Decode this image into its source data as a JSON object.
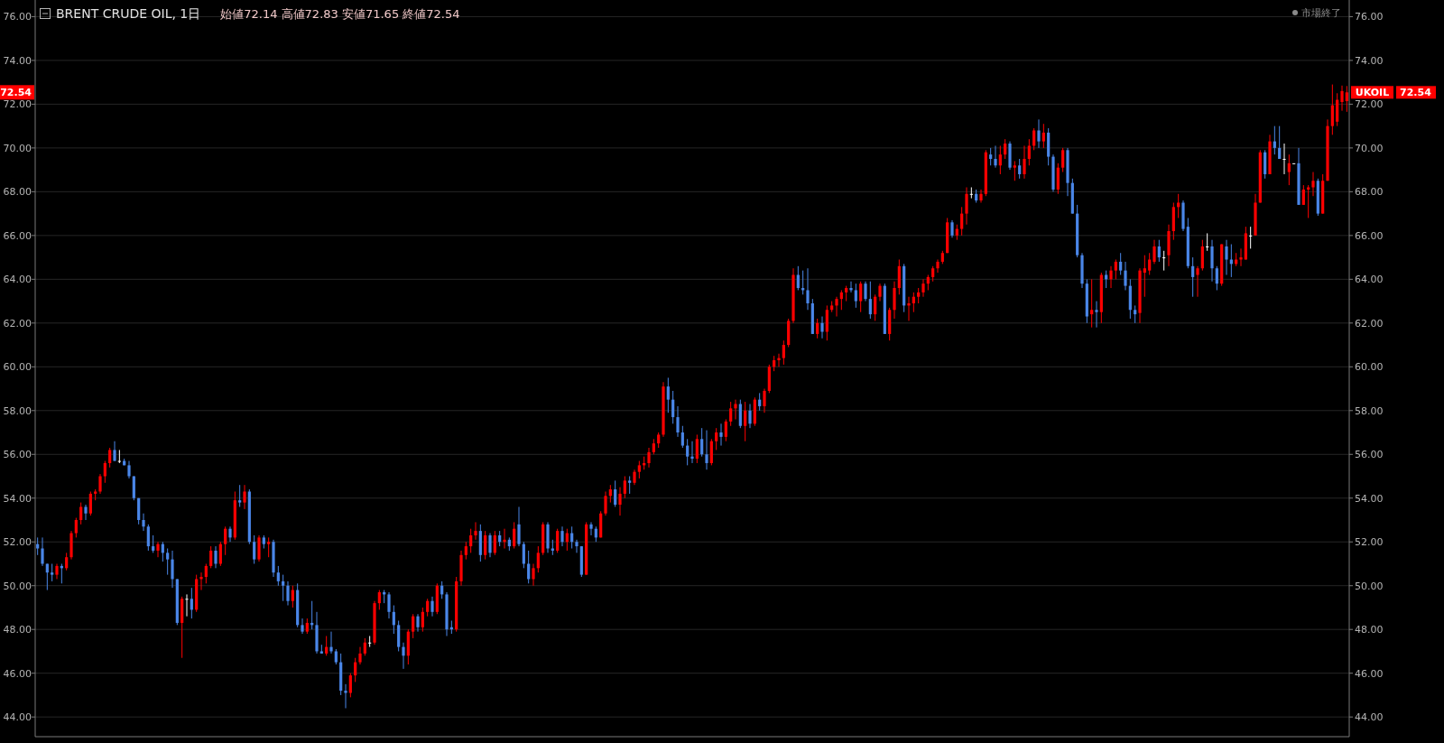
{
  "chart_data": {
    "type": "candlestick",
    "title": "BRENT CRUDE OIL, 1日",
    "annotations": [
      "始値72.14 高値72.83 安値71.65 終値72.54",
      "市場終了",
      "UKOIL",
      "72.54",
      "72.54"
    ],
    "categories": [
      null,
      null,
      null,
      null,
      null,
      null,
      null,
      null,
      null,
      null,
      null,
      null,
      null,
      null,
      null,
      null,
      null,
      null,
      null,
      null,
      null,
      null,
      null,
      null,
      null,
      null,
      null,
      null,
      null,
      null,
      null,
      null,
      null,
      null,
      null,
      null,
      null,
      null,
      null,
      null,
      null,
      null,
      null,
      null,
      null,
      null,
      null,
      null,
      null,
      null,
      null,
      null,
      null,
      null,
      null,
      null,
      null,
      null,
      null,
      null,
      null,
      null,
      null,
      null,
      null,
      null,
      null,
      null,
      null,
      null,
      null,
      null,
      null,
      null,
      null,
      null,
      null,
      null,
      null,
      null,
      null,
      null,
      null,
      null,
      null,
      null,
      null,
      null,
      null,
      null,
      null,
      null,
      null,
      null,
      null,
      null,
      null,
      null,
      null,
      null,
      null,
      null,
      null,
      null,
      null,
      null,
      null,
      null,
      null,
      null,
      null,
      null,
      null,
      null,
      null,
      null,
      null,
      null,
      null,
      null,
      null,
      null,
      null,
      null,
      null,
      null,
      null,
      null,
      null,
      null,
      null,
      null,
      null,
      null,
      null,
      null,
      null,
      null,
      null,
      null,
      null,
      null,
      null,
      null,
      null,
      null,
      null,
      null,
      null,
      null,
      null,
      null,
      null,
      null,
      null,
      null,
      null,
      null,
      null,
      null,
      null,
      null,
      null,
      null,
      null,
      null,
      null,
      null,
      null,
      null,
      null,
      null,
      null,
      null,
      null,
      null,
      null,
      null,
      null,
      null,
      null,
      null,
      null,
      null,
      null,
      null,
      null,
      null,
      null,
      null,
      null,
      null,
      null,
      null,
      null,
      null,
      null,
      null,
      null,
      null,
      null,
      null,
      null,
      null,
      null,
      null,
      null,
      null,
      null,
      null,
      null,
      null,
      null,
      null,
      null,
      null,
      null,
      null,
      null,
      null,
      null,
      null,
      null,
      null,
      null,
      null,
      null,
      null,
      null,
      null,
      null,
      null,
      null,
      null,
      null,
      null,
      null,
      null,
      null,
      null,
      null,
      null,
      null,
      null,
      null,
      null,
      null,
      null,
      null,
      null,
      null,
      null,
      null,
      null,
      null,
      null,
      null,
      null,
      null,
      null,
      null,
      null,
      null,
      null,
      null,
      null,
      null,
      null,
      null,
      null,
      null,
      null,
      null
    ],
    "ohlc": [
      [
        51.9,
        52.2,
        51.4,
        51.7
      ],
      [
        51.7,
        52.2,
        50.9,
        51.0
      ],
      [
        51.0,
        51.0,
        49.8,
        50.6
      ],
      [
        50.6,
        51.0,
        50.2,
        50.5
      ],
      [
        50.5,
        51.0,
        50.3,
        50.9
      ],
      [
        50.9,
        51.0,
        50.1,
        50.8
      ],
      [
        50.8,
        51.5,
        50.7,
        51.3
      ],
      [
        51.3,
        52.5,
        51.2,
        52.4
      ],
      [
        52.4,
        53.1,
        52.2,
        53.0
      ],
      [
        53.0,
        53.8,
        52.8,
        53.6
      ],
      [
        53.6,
        53.7,
        53.0,
        53.3
      ],
      [
        53.3,
        54.3,
        53.2,
        54.2
      ],
      [
        54.2,
        54.4,
        53.9,
        54.3
      ],
      [
        54.3,
        55.1,
        54.2,
        55.0
      ],
      [
        55.0,
        55.7,
        54.7,
        55.6
      ],
      [
        55.6,
        56.3,
        55.4,
        56.2
      ],
      [
        56.2,
        56.6,
        55.7,
        55.7
      ],
      [
        55.7,
        56.2,
        55.6,
        55.7
      ],
      [
        55.7,
        55.8,
        55.5,
        55.5
      ],
      [
        55.5,
        55.7,
        54.9,
        55.0
      ],
      [
        55.0,
        55.0,
        53.9,
        54.0
      ],
      [
        54.0,
        54.0,
        52.8,
        53.0
      ],
      [
        53.0,
        53.3,
        52.5,
        52.7
      ],
      [
        52.7,
        52.8,
        51.6,
        51.8
      ],
      [
        51.8,
        52.3,
        51.5,
        51.6
      ],
      [
        51.6,
        52.0,
        51.3,
        51.9
      ],
      [
        51.9,
        52.0,
        51.1,
        51.5
      ],
      [
        51.5,
        51.7,
        50.5,
        51.2
      ],
      [
        51.2,
        51.6,
        49.9,
        50.3
      ],
      [
        50.3,
        50.3,
        48.2,
        48.3
      ],
      [
        48.3,
        49.5,
        46.7,
        49.4
      ],
      [
        49.4,
        49.6,
        48.6,
        49.4
      ],
      [
        49.4,
        49.9,
        48.5,
        48.9
      ],
      [
        48.9,
        50.5,
        48.8,
        50.3
      ],
      [
        50.3,
        50.6,
        49.8,
        50.4
      ],
      [
        50.4,
        51.0,
        50.1,
        50.9
      ],
      [
        50.9,
        51.8,
        50.8,
        51.6
      ],
      [
        51.6,
        51.8,
        50.8,
        51.0
      ],
      [
        51.0,
        52.0,
        50.9,
        51.9
      ],
      [
        51.9,
        52.7,
        51.4,
        52.6
      ],
      [
        52.6,
        52.7,
        52.0,
        52.2
      ],
      [
        52.2,
        54.3,
        52.1,
        53.9
      ],
      [
        53.9,
        54.6,
        53.6,
        53.8
      ],
      [
        53.8,
        54.6,
        53.5,
        54.3
      ],
      [
        54.3,
        54.4,
        51.9,
        52.0
      ],
      [
        52.0,
        52.3,
        51.0,
        51.2
      ],
      [
        51.2,
        52.3,
        51.1,
        52.2
      ],
      [
        52.2,
        52.3,
        51.7,
        51.9
      ],
      [
        51.9,
        52.2,
        51.3,
        52.0
      ],
      [
        52.0,
        52.1,
        50.4,
        50.6
      ],
      [
        50.6,
        50.9,
        50.0,
        50.2
      ],
      [
        50.2,
        50.5,
        49.3,
        50.0
      ],
      [
        50.0,
        50.2,
        49.1,
        49.3
      ],
      [
        49.3,
        50.0,
        49.0,
        49.8
      ],
      [
        49.8,
        50.1,
        48.1,
        48.2
      ],
      [
        48.2,
        48.5,
        47.8,
        47.9
      ],
      [
        47.9,
        48.5,
        47.8,
        48.3
      ],
      [
        48.3,
        49.3,
        48.0,
        48.2
      ],
      [
        48.2,
        48.8,
        46.9,
        47.0
      ],
      [
        47.0,
        47.3,
        46.9,
        46.9
      ],
      [
        46.9,
        47.7,
        46.8,
        47.2
      ],
      [
        47.2,
        47.9,
        46.9,
        47.0
      ],
      [
        47.0,
        47.1,
        46.4,
        46.5
      ],
      [
        46.5,
        46.9,
        45.0,
        45.2
      ],
      [
        45.2,
        45.5,
        44.4,
        45.1
      ],
      [
        45.1,
        46.0,
        44.9,
        45.9
      ],
      [
        45.9,
        46.7,
        45.6,
        46.5
      ],
      [
        46.5,
        47.2,
        46.4,
        46.9
      ],
      [
        46.9,
        47.6,
        46.8,
        47.4
      ],
      [
        47.4,
        47.7,
        47.2,
        47.4
      ],
      [
        47.4,
        49.3,
        47.3,
        49.2
      ],
      [
        49.2,
        49.8,
        48.9,
        49.7
      ],
      [
        49.7,
        49.8,
        49.2,
        49.6
      ],
      [
        49.6,
        49.7,
        48.5,
        48.8
      ],
      [
        48.8,
        49.1,
        47.8,
        48.2
      ],
      [
        48.2,
        48.4,
        47.0,
        47.2
      ],
      [
        47.2,
        47.4,
        46.2,
        46.8
      ],
      [
        46.8,
        48.0,
        46.4,
        47.9
      ],
      [
        47.9,
        48.7,
        47.6,
        48.6
      ],
      [
        48.6,
        48.7,
        47.9,
        48.1
      ],
      [
        48.1,
        49.0,
        47.9,
        48.8
      ],
      [
        48.8,
        49.4,
        48.6,
        49.3
      ],
      [
        49.3,
        49.5,
        48.6,
        48.8
      ],
      [
        48.8,
        50.1,
        48.7,
        50.0
      ],
      [
        50.0,
        50.2,
        49.4,
        49.6
      ],
      [
        49.6,
        49.7,
        47.7,
        48.0
      ],
      [
        48.1,
        48.4,
        47.8,
        48.0
      ],
      [
        48.0,
        50.4,
        47.9,
        50.2
      ],
      [
        50.2,
        51.6,
        50.0,
        51.4
      ],
      [
        51.4,
        52.0,
        51.2,
        51.8
      ],
      [
        51.8,
        52.6,
        51.5,
        52.3
      ],
      [
        52.3,
        52.9,
        52.1,
        52.5
      ],
      [
        52.5,
        52.8,
        51.1,
        51.4
      ],
      [
        51.4,
        52.5,
        51.2,
        52.3
      ],
      [
        52.3,
        52.4,
        51.3,
        51.5
      ],
      [
        51.5,
        52.5,
        51.4,
        52.3
      ],
      [
        52.3,
        52.5,
        51.8,
        52.0
      ],
      [
        52.0,
        52.6,
        51.7,
        52.1
      ],
      [
        52.1,
        52.2,
        51.6,
        51.8
      ],
      [
        51.8,
        52.9,
        51.7,
        52.6
      ],
      [
        52.8,
        53.6,
        51.8,
        51.9
      ],
      [
        51.9,
        52.0,
        50.8,
        51.0
      ],
      [
        51.0,
        51.6,
        50.1,
        50.3
      ],
      [
        50.3,
        51.0,
        50.0,
        50.8
      ],
      [
        50.8,
        51.8,
        50.6,
        51.5
      ],
      [
        51.5,
        52.9,
        51.4,
        52.8
      ],
      [
        52.8,
        52.9,
        51.5,
        51.7
      ],
      [
        51.7,
        52.1,
        51.4,
        51.6
      ],
      [
        51.6,
        52.6,
        51.5,
        52.5
      ],
      [
        52.5,
        52.7,
        51.8,
        52.0
      ],
      [
        52.0,
        52.6,
        51.6,
        52.4
      ],
      [
        52.4,
        52.7,
        51.7,
        52.0
      ],
      [
        52.0,
        52.1,
        51.5,
        51.8
      ],
      [
        51.8,
        51.8,
        50.4,
        50.5
      ],
      [
        50.5,
        52.9,
        50.5,
        52.8
      ],
      [
        52.8,
        52.9,
        52.3,
        52.6
      ],
      [
        52.6,
        52.7,
        52.0,
        52.2
      ],
      [
        52.2,
        53.4,
        52.2,
        53.3
      ],
      [
        53.3,
        54.3,
        53.2,
        54.1
      ],
      [
        54.1,
        54.6,
        53.8,
        54.4
      ],
      [
        54.4,
        54.8,
        53.6,
        53.7
      ],
      [
        53.7,
        54.5,
        53.2,
        54.2
      ],
      [
        54.2,
        55.0,
        54.0,
        54.8
      ],
      [
        54.8,
        55.0,
        54.2,
        54.7
      ],
      [
        54.7,
        55.3,
        54.6,
        55.2
      ],
      [
        55.2,
        55.7,
        54.9,
        55.5
      ],
      [
        55.5,
        55.9,
        55.3,
        55.6
      ],
      [
        55.6,
        56.3,
        55.4,
        56.1
      ],
      [
        56.1,
        56.7,
        56.0,
        56.5
      ],
      [
        56.5,
        57.0,
        56.3,
        56.9
      ],
      [
        56.9,
        59.3,
        56.8,
        59.1
      ],
      [
        59.1,
        59.5,
        57.9,
        58.5
      ],
      [
        58.5,
        58.9,
        57.4,
        57.7
      ],
      [
        57.7,
        58.2,
        56.8,
        57.0
      ],
      [
        57.0,
        57.3,
        56.3,
        56.4
      ],
      [
        56.4,
        56.7,
        55.5,
        55.9
      ],
      [
        55.9,
        56.6,
        55.6,
        55.8
      ],
      [
        55.8,
        56.9,
        55.6,
        56.7
      ],
      [
        56.7,
        57.2,
        55.9,
        56.0
      ],
      [
        56.0,
        57.1,
        55.3,
        55.6
      ],
      [
        55.6,
        56.7,
        55.5,
        56.6
      ],
      [
        56.6,
        57.2,
        56.2,
        57.0
      ],
      [
        57.0,
        57.4,
        56.4,
        56.8
      ],
      [
        56.8,
        57.6,
        56.6,
        57.5
      ],
      [
        57.5,
        58.4,
        57.3,
        58.1
      ],
      [
        58.1,
        58.5,
        57.6,
        58.3
      ],
      [
        58.3,
        58.5,
        57.2,
        57.3
      ],
      [
        57.3,
        58.4,
        56.6,
        58.0
      ],
      [
        58.0,
        58.3,
        57.2,
        57.4
      ],
      [
        57.4,
        58.6,
        57.3,
        58.5
      ],
      [
        58.5,
        58.8,
        58.0,
        58.2
      ],
      [
        58.2,
        59.0,
        57.9,
        58.9
      ],
      [
        58.9,
        60.1,
        58.8,
        60.0
      ],
      [
        60.0,
        60.5,
        59.8,
        60.3
      ],
      [
        60.3,
        60.6,
        60.0,
        60.4
      ],
      [
        60.4,
        61.2,
        60.1,
        61.0
      ],
      [
        61.0,
        62.2,
        60.9,
        62.1
      ],
      [
        62.1,
        64.5,
        62.0,
        64.2
      ],
      [
        64.2,
        64.6,
        63.5,
        63.6
      ],
      [
        63.6,
        64.4,
        63.3,
        63.5
      ],
      [
        63.5,
        64.5,
        62.6,
        62.9
      ],
      [
        62.9,
        63.1,
        61.5,
        61.5
      ],
      [
        61.5,
        62.2,
        61.3,
        62.0
      ],
      [
        62.0,
        62.3,
        61.3,
        61.6
      ],
      [
        61.6,
        62.8,
        61.2,
        62.6
      ],
      [
        62.6,
        63.0,
        62.5,
        62.8
      ],
      [
        62.8,
        63.2,
        62.3,
        63.1
      ],
      [
        63.1,
        63.5,
        62.6,
        63.4
      ],
      [
        63.4,
        63.7,
        63.0,
        63.6
      ],
      [
        63.6,
        63.9,
        63.4,
        63.5
      ],
      [
        63.5,
        63.8,
        62.7,
        63.0
      ],
      [
        63.0,
        63.9,
        62.5,
        63.8
      ],
      [
        63.8,
        63.9,
        63.0,
        63.1
      ],
      [
        63.1,
        63.9,
        62.2,
        62.4
      ],
      [
        62.4,
        63.3,
        62.1,
        63.2
      ],
      [
        63.2,
        63.8,
        63.0,
        63.7
      ],
      [
        63.7,
        63.8,
        61.5,
        61.5
      ],
      [
        61.5,
        62.7,
        61.2,
        62.6
      ],
      [
        62.6,
        63.9,
        62.2,
        63.6
      ],
      [
        63.6,
        64.9,
        63.3,
        64.6
      ],
      [
        64.6,
        64.7,
        62.5,
        62.8
      ],
      [
        62.8,
        63.2,
        62.1,
        62.9
      ],
      [
        62.9,
        63.4,
        62.5,
        63.2
      ],
      [
        63.2,
        63.6,
        62.9,
        63.4
      ],
      [
        63.4,
        64.0,
        63.2,
        63.8
      ],
      [
        63.8,
        64.2,
        63.5,
        64.1
      ],
      [
        64.1,
        64.6,
        63.9,
        64.5
      ],
      [
        64.5,
        64.9,
        64.3,
        64.8
      ],
      [
        64.8,
        65.3,
        64.7,
        65.2
      ],
      [
        65.2,
        66.8,
        65.2,
        66.6
      ],
      [
        66.6,
        66.7,
        65.9,
        66.0
      ],
      [
        66.0,
        66.5,
        65.8,
        66.3
      ],
      [
        66.3,
        67.3,
        66.0,
        67.0
      ],
      [
        67.0,
        68.2,
        66.5,
        67.9
      ],
      [
        67.9,
        68.2,
        67.7,
        67.9
      ],
      [
        67.9,
        68.1,
        67.5,
        67.6
      ],
      [
        67.6,
        68.1,
        67.5,
        67.9
      ],
      [
        67.9,
        69.9,
        67.8,
        69.8
      ],
      [
        69.7,
        70.0,
        69.2,
        69.5
      ],
      [
        69.5,
        70.1,
        69.1,
        69.2
      ],
      [
        69.2,
        70.1,
        68.8,
        69.7
      ],
      [
        69.7,
        70.4,
        69.5,
        70.2
      ],
      [
        70.2,
        70.3,
        69.0,
        69.1
      ],
      [
        69.1,
        69.4,
        68.5,
        69.2
      ],
      [
        69.2,
        69.5,
        68.6,
        68.8
      ],
      [
        68.8,
        70.1,
        68.6,
        69.5
      ],
      [
        69.5,
        70.4,
        69.2,
        70.1
      ],
      [
        70.1,
        70.9,
        69.9,
        70.8
      ],
      [
        70.8,
        71.3,
        70.0,
        70.3
      ],
      [
        70.3,
        71.1,
        70.0,
        70.7
      ],
      [
        70.7,
        70.9,
        69.2,
        69.6
      ],
      [
        69.6,
        69.7,
        68.0,
        68.1
      ],
      [
        68.1,
        69.3,
        67.9,
        69.1
      ],
      [
        69.1,
        70.0,
        68.9,
        69.9
      ],
      [
        69.9,
        70.0,
        67.8,
        68.4
      ],
      [
        68.4,
        68.6,
        67.0,
        67.0
      ],
      [
        67.0,
        67.4,
        65.0,
        65.1
      ],
      [
        65.1,
        65.2,
        63.6,
        63.8
      ],
      [
        63.8,
        64.0,
        62.0,
        62.3
      ],
      [
        62.4,
        64.0,
        61.8,
        62.6
      ],
      [
        62.6,
        63.0,
        61.8,
        62.5
      ],
      [
        62.5,
        64.3,
        62.0,
        64.2
      ],
      [
        64.2,
        64.4,
        63.6,
        64.0
      ],
      [
        64.0,
        64.6,
        63.6,
        64.4
      ],
      [
        64.4,
        64.9,
        64.0,
        64.8
      ],
      [
        64.8,
        65.2,
        64.2,
        64.4
      ],
      [
        64.4,
        64.8,
        63.5,
        63.7
      ],
      [
        63.7,
        64.0,
        62.2,
        62.6
      ],
      [
        62.6,
        62.8,
        62.0,
        62.4
      ],
      [
        62.46,
        64.5,
        62.0,
        64.4
      ],
      [
        64.3,
        65.1,
        63.2,
        64.5
      ],
      [
        64.4,
        65.2,
        64.2,
        64.9
      ],
      [
        64.8,
        65.8,
        64.7,
        65.5
      ],
      [
        65.5,
        65.8,
        64.8,
        65.0
      ],
      [
        65.0,
        65.3,
        64.4,
        65.0
      ],
      [
        65.1,
        66.5,
        64.6,
        66.2
      ],
      [
        66.2,
        67.5,
        65.8,
        67.3
      ],
      [
        67.3,
        67.9,
        66.8,
        67.5
      ],
      [
        67.5,
        67.6,
        66.2,
        66.3
      ],
      [
        66.4,
        66.8,
        64.5,
        64.6
      ],
      [
        64.6,
        65.0,
        63.2,
        64.1
      ],
      [
        64.2,
        64.6,
        63.2,
        64.5
      ],
      [
        64.5,
        65.8,
        64.4,
        65.5
      ],
      [
        65.5,
        66.1,
        65.3,
        65.5
      ],
      [
        65.5,
        65.8,
        63.9,
        64.5
      ],
      [
        64.5,
        64.6,
        63.5,
        63.8
      ],
      [
        63.8,
        65.6,
        63.7,
        65.6
      ],
      [
        65.5,
        65.8,
        64.2,
        64.9
      ],
      [
        64.9,
        65.6,
        64.1,
        64.7
      ],
      [
        64.7,
        65.2,
        64.6,
        64.9
      ],
      [
        64.9,
        65.4,
        64.6,
        65.0
      ],
      [
        64.9,
        66.4,
        64.9,
        66.1
      ],
      [
        66.0,
        66.4,
        65.4,
        66.0
      ],
      [
        66.0,
        67.9,
        66.0,
        67.5
      ],
      [
        67.5,
        69.9,
        67.5,
        69.8
      ],
      [
        69.8,
        69.9,
        68.6,
        68.8
      ],
      [
        68.8,
        70.6,
        68.8,
        70.3
      ],
      [
        70.3,
        71.0,
        69.7,
        70.0
      ],
      [
        70.0,
        71.0,
        69.5,
        69.5
      ],
      [
        69.5,
        70.2,
        68.8,
        69.5
      ],
      [
        68.9,
        69.7,
        68.3,
        69.3
      ],
      [
        69.3,
        69.3,
        69.3,
        69.3
      ],
      [
        69.3,
        70.0,
        67.4,
        67.4
      ],
      [
        67.4,
        68.3,
        67.4,
        68.1
      ],
      [
        68.1,
        68.3,
        66.8,
        68.2
      ],
      [
        68.2,
        68.9,
        67.8,
        68.5
      ],
      [
        68.5,
        68.6,
        66.9,
        67.0
      ],
      [
        67.0,
        68.8,
        67.0,
        68.5
      ],
      [
        68.5,
        71.3,
        68.5,
        71.0
      ],
      [
        71.0,
        72.9,
        70.6,
        71.95
      ],
      [
        71.2,
        72.5,
        71.0,
        72.2
      ],
      [
        72.1,
        72.85,
        71.7,
        72.6
      ],
      [
        72.14,
        72.83,
        71.65,
        72.54
      ]
    ],
    "colors": [
      "#4a86e8",
      "#4a86e8",
      "#4a86e8",
      "#4a86e8",
      "#ff0000",
      "#4a86e8",
      "#ff0000",
      "#ff0000",
      "#ff0000",
      "#ff0000",
      "#4a86e8",
      "#ff0000",
      "#ff0000",
      "#ff0000",
      "#ff0000",
      "#ff0000",
      "#4a86e8",
      "#ffffff",
      "#4a86e8",
      "#4a86e8",
      "#4a86e8",
      "#4a86e8",
      "#4a86e8",
      "#4a86e8",
      "#4a86e8",
      "#ff0000",
      "#4a86e8",
      "#4a86e8",
      "#4a86e8",
      "#4a86e8",
      "#ff0000",
      "#ffffff",
      "#4a86e8",
      "#ff0000",
      "#ff0000",
      "#ff0000",
      "#ff0000",
      "#4a86e8",
      "#ff0000",
      "#ff0000",
      "#4a86e8",
      "#ff0000",
      "#4a86e8",
      "#ff0000",
      "#4a86e8",
      "#4a86e8",
      "#ff0000",
      "#4a86e8",
      "#ff0000",
      "#4a86e8",
      "#4a86e8",
      "#4a86e8",
      "#4a86e8",
      "#ff0000",
      "#4a86e8",
      "#4a86e8",
      "#ff0000",
      "#4a86e8",
      "#4a86e8",
      "#4a86e8",
      "#ff0000",
      "#4a86e8",
      "#4a86e8",
      "#4a86e8",
      "#4a86e8",
      "#ff0000",
      "#ff0000",
      "#ff0000",
      "#ff0000",
      "#ffffff",
      "#ff0000",
      "#ff0000",
      "#4a86e8",
      "#4a86e8",
      "#4a86e8",
      "#4a86e8",
      "#4a86e8",
      "#ff0000",
      "#ff0000",
      "#4a86e8",
      "#ff0000",
      "#ff0000",
      "#4a86e8",
      "#ff0000",
      "#4a86e8",
      "#4a86e8",
      "#4a86e8",
      "#ff0000",
      "#ff0000",
      "#ff0000",
      "#ff0000",
      "#ff0000",
      "#4a86e8",
      "#ff0000",
      "#4a86e8",
      "#ff0000",
      "#4a86e8",
      "#ff0000",
      "#4a86e8",
      "#ff0000",
      "#4a86e8",
      "#4a86e8",
      "#4a86e8",
      "#ff0000",
      "#ff0000",
      "#ff0000",
      "#4a86e8",
      "#4a86e8",
      "#ff0000",
      "#4a86e8",
      "#ff0000",
      "#4a86e8",
      "#4a86e8",
      "#4a86e8",
      "#ff0000",
      "#4a86e8",
      "#4a86e8",
      "#ff0000",
      "#ff0000",
      "#ff0000",
      "#4a86e8",
      "#ff0000",
      "#ff0000",
      "#4a86e8",
      "#ff0000",
      "#ff0000",
      "#ff0000",
      "#ff0000",
      "#ff0000",
      "#ff0000",
      "#ff0000",
      "#4a86e8",
      "#4a86e8",
      "#4a86e8",
      "#4a86e8",
      "#4a86e8",
      "#4a86e8",
      "#ff0000",
      "#4a86e8",
      "#4a86e8",
      "#ff0000",
      "#ff0000",
      "#4a86e8",
      "#ff0000",
      "#ff0000",
      "#ff0000",
      "#4a86e8",
      "#ff0000",
      "#4a86e8",
      "#ff0000",
      "#4a86e8",
      "#ff0000",
      "#ff0000",
      "#ff0000",
      "#ff0000",
      "#ff0000",
      "#ff0000",
      "#ff0000",
      "#4a86e8",
      "#4a86e8",
      "#4a86e8",
      "#4a86e8",
      "#ff0000",
      "#4a86e8",
      "#ff0000",
      "#ff0000",
      "#ff0000",
      "#ff0000",
      "#ff0000",
      "#4a86e8",
      "#4a86e8",
      "#ff0000",
      "#4a86e8",
      "#4a86e8",
      "#ff0000",
      "#ff0000",
      "#4a86e8",
      "#ff0000",
      "#ff0000",
      "#ff0000",
      "#4a86e8",
      "#ff0000",
      "#ff0000",
      "#ff0000",
      "#ff0000",
      "#ff0000",
      "#ff0000",
      "#ff0000",
      "#ff0000",
      "#ff0000",
      "#4a86e8",
      "#ff0000",
      "#ff0000",
      "#ff0000",
      "#ffffff",
      "#4a86e8",
      "#ff0000",
      "#ff0000",
      "#4a86e8",
      "#4a86e8",
      "#ff0000",
      "#ff0000",
      "#4a86e8",
      "#ff0000",
      "#4a86e8",
      "#ff0000",
      "#ff0000",
      "#ff0000",
      "#4a86e8",
      "#ff0000",
      "#4a86e8",
      "#4a86e8",
      "#ff0000",
      "#ff0000",
      "#4a86e8",
      "#4a86e8",
      "#4a86e8",
      "#4a86e8",
      "#4a86e8",
      "#ff0000",
      "#4a86e8",
      "#ff0000",
      "#4a86e8",
      "#ff0000",
      "#ff0000",
      "#4a86e8",
      "#4a86e8",
      "#4a86e8",
      "#4a86e8",
      "#ff0000",
      "#ff0000",
      "#ff0000",
      "#ff0000",
      "#4a86e8",
      "#ffffff",
      "#ff0000",
      "#ff0000",
      "#ff0000",
      "#4a86e8",
      "#4a86e8",
      "#4a86e8",
      "#ff0000",
      "#ff0000",
      "#ffffff",
      "#4a86e8",
      "#4a86e8",
      "#ff0000",
      "#4a86e8",
      "#4a86e8",
      "#ff0000",
      "#ff0000",
      "#ff0000",
      "#ffffff",
      "#ff0000",
      "#ff0000",
      "#4a86e8",
      "#ff0000",
      "#4a86e8",
      "#4a86e8",
      "#ffffff",
      "#ff0000",
      "#ffffff",
      "#4a86e8",
      "#ff0000",
      "#ff0000",
      "#ff0000",
      "#4a86e8",
      "#ff0000",
      "#ff0000",
      "#ff0000",
      "#ff0000",
      "#ff0000",
      "#ff0000"
    ],
    "ylim": [
      43.1,
      76.76
    ],
    "yticks": [
      {
        "value": 44,
        "label": "44.00"
      },
      {
        "value": 46,
        "label": "46.00"
      },
      {
        "value": 48,
        "label": "48.00"
      },
      {
        "value": 50,
        "label": "50.00"
      },
      {
        "value": 52,
        "label": "52.00"
      },
      {
        "value": 54,
        "label": "54.00"
      },
      {
        "value": 56,
        "label": "56.00"
      },
      {
        "value": 58,
        "label": "58.00"
      },
      {
        "value": 60,
        "label": "60.00"
      },
      {
        "value": 62,
        "label": "62.00"
      },
      {
        "value": 64,
        "label": "64.00"
      },
      {
        "value": 66,
        "label": "66.00"
      },
      {
        "value": 68,
        "label": "68.00"
      },
      {
        "value": 70,
        "label": "70.00"
      },
      {
        "value": 72,
        "label": "72.00"
      },
      {
        "value": 74,
        "label": "74.00"
      },
      {
        "value": 76,
        "label": "76.00"
      }
    ],
    "y2lim": [
      43.1,
      76.76
    ],
    "y2ticks": [
      {
        "value": 44,
        "label": "44.00"
      },
      {
        "value": 46,
        "label": "46.00"
      },
      {
        "value": 48,
        "label": "48.00"
      },
      {
        "value": 50,
        "label": "50.00"
      },
      {
        "value": 52,
        "label": "52.00"
      },
      {
        "value": 54,
        "label": "54.00"
      },
      {
        "value": 56,
        "label": "56.00"
      },
      {
        "value": 58,
        "label": "58.00"
      },
      {
        "value": 60,
        "label": "60.00"
      },
      {
        "value": 62,
        "label": "62.00"
      },
      {
        "value": 64,
        "label": "64.00"
      },
      {
        "value": 66,
        "label": "66.00"
      },
      {
        "value": 68,
        "label": "68.00"
      },
      {
        "value": 70,
        "label": "70.00"
      },
      {
        "value": 72,
        "label": "72.00"
      },
      {
        "value": 74,
        "label": "74.00"
      },
      {
        "value": 76,
        "label": "76.00"
      }
    ],
    "grid": "y"
  }
}
